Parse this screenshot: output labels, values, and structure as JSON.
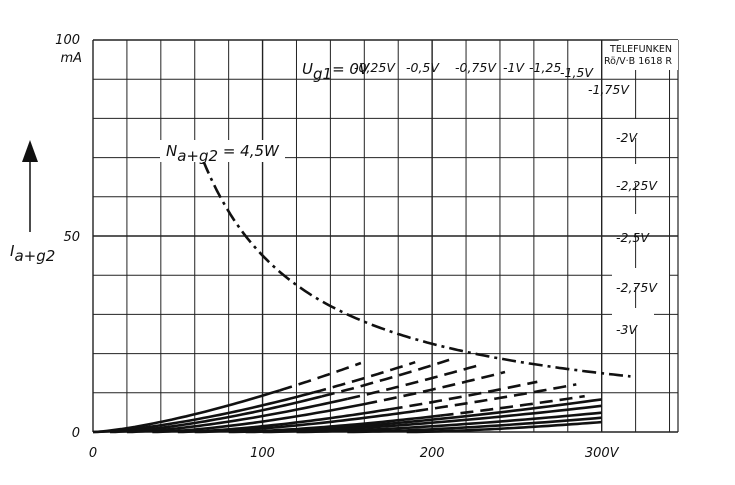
{
  "chart_data": {
    "type": "line",
    "title": "",
    "xlabel": "",
    "ylabel": "I_a+g2",
    "y_axis": {
      "label_main": "I",
      "label_sub": "a+g2",
      "unit": "mA",
      "ticks": [
        "0",
        "50",
        "100"
      ]
    },
    "x_axis": {
      "unit": "V",
      "ticks": [
        "0",
        "100",
        "200",
        "300V"
      ],
      "tick_values": [
        0,
        100,
        200,
        300
      ]
    },
    "xlim": [
      0,
      345
    ],
    "ylim": [
      0,
      100
    ],
    "grid": true,
    "brand": {
      "line1": "TELEFUNKEN",
      "line2": "Rö/V·B 1618 R"
    },
    "parameter": {
      "symbol_main": "U",
      "symbol_sub": "g1",
      "equals_first": "= 0V"
    },
    "power_limit": {
      "label_main": "N",
      "label_sub": "a+g2",
      "label_rest": " = 4,5W",
      "watts": 4.5
    },
    "series": [
      {
        "name": "0V",
        "label": "= 0V",
        "x0": 0,
        "k": 0.0147,
        "p": 1.4,
        "x_solid_end": 110,
        "x_end": 158
      },
      {
        "name": "-0,25V",
        "label": "-0,25V",
        "x0": 0,
        "k": 0.0068,
        "p": 1.5,
        "x_solid_end": 130,
        "x_end": 190
      },
      {
        "name": "-0,5V",
        "label": "-0,5V",
        "x0": 10,
        "k": 0.0065,
        "p": 1.5,
        "x_solid_end": 135,
        "x_end": 210
      },
      {
        "name": "-0,75V",
        "label": "-0,75V",
        "x0": 20,
        "k": 0.0057,
        "p": 1.5,
        "x_solid_end": 150,
        "x_end": 227
      },
      {
        "name": "-1V",
        "label": "-1V",
        "x0": 35,
        "k": 0.0051,
        "p": 1.5,
        "x_solid_end": 160,
        "x_end": 243
      },
      {
        "name": "-1,25",
        "label": "-1,25",
        "x0": 50,
        "k": 0.00415,
        "p": 1.5,
        "x_solid_end": 175,
        "x_end": 262
      },
      {
        "name": "-1,5V",
        "label": "-1,5V",
        "x0": 60,
        "k": 0.0036,
        "p": 1.5,
        "x_solid_end": 190,
        "x_end": 285
      },
      {
        "name": "-1,75V",
        "label": "-1,75V",
        "x0": 80,
        "k": 0.003,
        "p": 1.5,
        "x_solid_end": 205,
        "x_end": 290
      },
      {
        "name": "-2V",
        "label": "-2V",
        "x0": 90,
        "k": 0.00273,
        "p": 1.5,
        "x_solid_end": 300,
        "x_end": 300
      },
      {
        "name": "-2,25V",
        "label": "-2,25V",
        "x0": 100,
        "k": 0.00236,
        "p": 1.5,
        "x_solid_end": 300,
        "x_end": 300
      },
      {
        "name": "-2,5V",
        "label": "-2,5V",
        "x0": 120,
        "k": 0.00204,
        "p": 1.5,
        "x_solid_end": 300,
        "x_end": 300
      },
      {
        "name": "-2,75V",
        "label": "-2,75V",
        "x0": 150,
        "k": 0.00198,
        "p": 1.5,
        "x_solid_end": 300,
        "x_end": 300
      },
      {
        "name": "-3V",
        "label": "-3V",
        "x0": 185,
        "k": 0.00205,
        "p": 1.5,
        "x_solid_end": 300,
        "x_end": 300
      }
    ]
  }
}
